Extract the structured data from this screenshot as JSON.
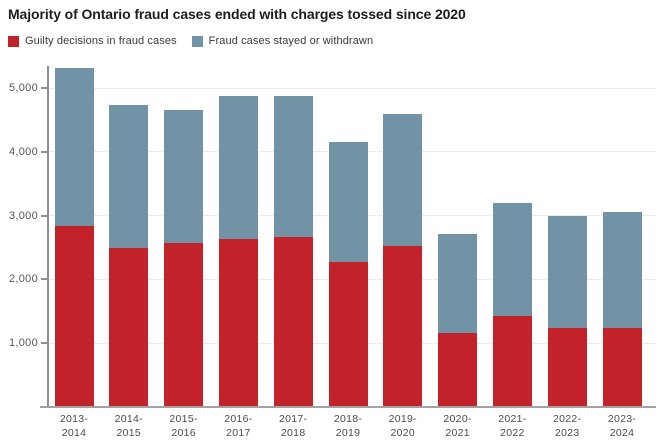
{
  "title": "Majority of Ontario fraud cases ended with charges tossed since 2020",
  "legend": [
    {
      "label": "Guilty decisions in fraud cases",
      "color": "#c2232a"
    },
    {
      "label": "Fraud cases stayed or withdrawn",
      "color": "#7292a5"
    }
  ],
  "chart_data": {
    "type": "bar",
    "stacked": true,
    "title": "Majority of Ontario fraud cases ended with charges tossed since 2020",
    "categories": [
      "2013-2014",
      "2014-2015",
      "2015-2016",
      "2016-2017",
      "2017-2018",
      "2018-2019",
      "2019-2020",
      "2020-2021",
      "2021-2022",
      "2022-2023",
      "2023-2024"
    ],
    "series": [
      {
        "name": "Guilty decisions in fraud cases",
        "color": "#c2232a",
        "values": [
          2840,
          2490,
          2570,
          2640,
          2670,
          2270,
          2530,
          1160,
          1430,
          1240,
          1240
        ]
      },
      {
        "name": "Fraud cases stayed or withdrawn",
        "color": "#7292a5",
        "values": [
          2470,
          2250,
          2080,
          2240,
          2210,
          1880,
          2070,
          1550,
          1770,
          1760,
          1810
        ]
      }
    ],
    "totals": [
      5310,
      4740,
      4650,
      4880,
      4880,
      4150,
      4600,
      2710,
      3200,
      3000,
      3050
    ],
    "xlabel": "",
    "ylabel": "",
    "y_ticks": [
      1000,
      2000,
      3000,
      4000,
      5000
    ],
    "y_tick_labels": [
      "1,000",
      "2,000",
      "3,000",
      "4,000",
      "5,000"
    ],
    "ylim": [
      0,
      5350
    ],
    "grid": "horizontal-dotted",
    "legend_position": "top-left"
  }
}
